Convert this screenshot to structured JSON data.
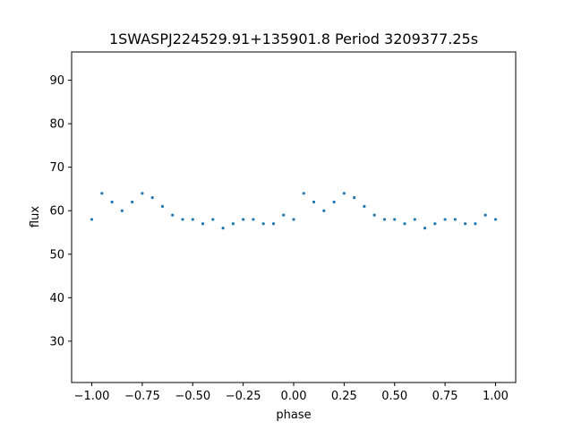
{
  "chart_data": {
    "type": "scatter",
    "title": "1SWASPJ224529.91+135901.8 Period 3209377.25s",
    "xlabel": "phase",
    "ylabel": "flux",
    "xlim": [
      -1.1,
      1.1
    ],
    "ylim": [
      20.5,
      96.5
    ],
    "xticks": [
      -1.0,
      -0.75,
      -0.5,
      -0.25,
      0.0,
      0.25,
      0.5,
      0.75,
      1.0
    ],
    "xtick_labels": [
      "−1.00",
      "−0.75",
      "−0.50",
      "−0.25",
      "0.00",
      "0.25",
      "0.50",
      "0.75",
      "1.00"
    ],
    "yticks": [
      30,
      40,
      50,
      60,
      70,
      80,
      90
    ],
    "ytick_labels": [
      "30",
      "40",
      "50",
      "60",
      "70",
      "80",
      "90"
    ],
    "grid": false,
    "marker_color": "#1f77b4",
    "series": [
      {
        "x": [
          -1.0,
          -0.95,
          -0.9,
          -0.85,
          -0.8,
          -0.75,
          -0.7,
          -0.65,
          -0.6,
          -0.55,
          -0.5,
          -0.45,
          -0.4,
          -0.35,
          -0.3,
          -0.25,
          -0.2,
          -0.15,
          -0.1,
          -0.05,
          0.0,
          0.05,
          0.1,
          0.15,
          0.2,
          0.25,
          0.3,
          0.35,
          0.4,
          0.45,
          0.5,
          0.55,
          0.6,
          0.65,
          0.7,
          0.75,
          0.8,
          0.85,
          0.9,
          0.95,
          1.0
        ],
        "y": [
          58,
          64,
          62,
          60,
          62,
          64,
          63,
          61,
          59,
          58,
          58,
          57,
          58,
          56,
          57,
          58,
          58,
          57,
          57,
          59,
          58,
          64,
          62,
          60,
          62,
          64,
          63,
          61,
          59,
          58,
          58,
          57,
          58,
          56,
          57,
          58,
          58,
          57,
          57,
          59,
          58
        ]
      }
    ]
  }
}
